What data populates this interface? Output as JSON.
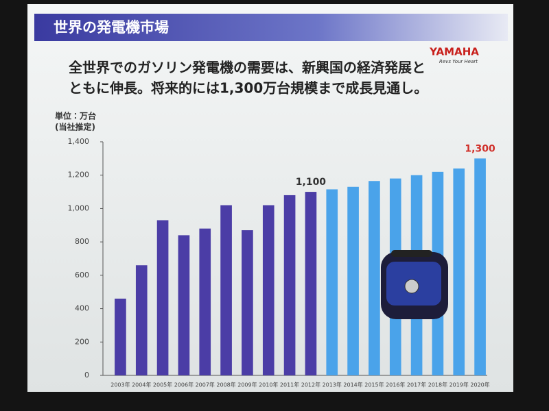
{
  "chart_data": {
    "type": "bar",
    "title": "世界の発電機市場",
    "logo": "YAMAHA",
    "tagline": "Revs Your Heart",
    "headline": [
      "全世界でのガソリン発電機の需要は、新興国の経済発展と",
      "ともに伸長。将来的には1,300万台規模まで成長見通し。"
    ],
    "y_label": [
      "単位：万台",
      "(当社推定)"
    ],
    "categories": [
      "2003年",
      "2004年",
      "2005年",
      "2006年",
      "2007年",
      "2008年",
      "2009年",
      "2010年",
      "2011年",
      "2012年",
      "2013年",
      "2014年",
      "2015年",
      "2016年",
      "2017年",
      "2018年",
      "2019年",
      "2020年"
    ],
    "values": [
      460,
      660,
      930,
      840,
      880,
      1020,
      870,
      1020,
      1080,
      1100,
      1115,
      1130,
      1165,
      1180,
      1200,
      1220,
      1240,
      1300
    ],
    "value_labels": [
      null,
      null,
      null,
      null,
      null,
      null,
      null,
      null,
      null,
      "1,100",
      null,
      null,
      null,
      null,
      null,
      null,
      null,
      "1,300"
    ],
    "colors": [
      "#4b3da6",
      "#4b3da6",
      "#4b3da6",
      "#4b3da6",
      "#4b3da6",
      "#4b3da6",
      "#4b3da6",
      "#4b3da6",
      "#4b3da6",
      "#4b3da6",
      "#4aa3ea",
      "#4aa3ea",
      "#4aa3ea",
      "#4aa3ea",
      "#4aa3ea",
      "#4aa3ea",
      "#4aa3ea",
      "#4aa3ea"
    ],
    "label_colors": [
      "#333333",
      "#d0302a"
    ],
    "ylim": [
      0,
      1400
    ],
    "yticks": [
      0,
      200,
      400,
      600,
      800,
      {
        "value": 1000,
        "label": "1,000"
      },
      {
        "value": 1200,
        "label": "1,200"
      },
      {
        "value": 1400,
        "label": "1,400"
      }
    ],
    "grid": false
  }
}
